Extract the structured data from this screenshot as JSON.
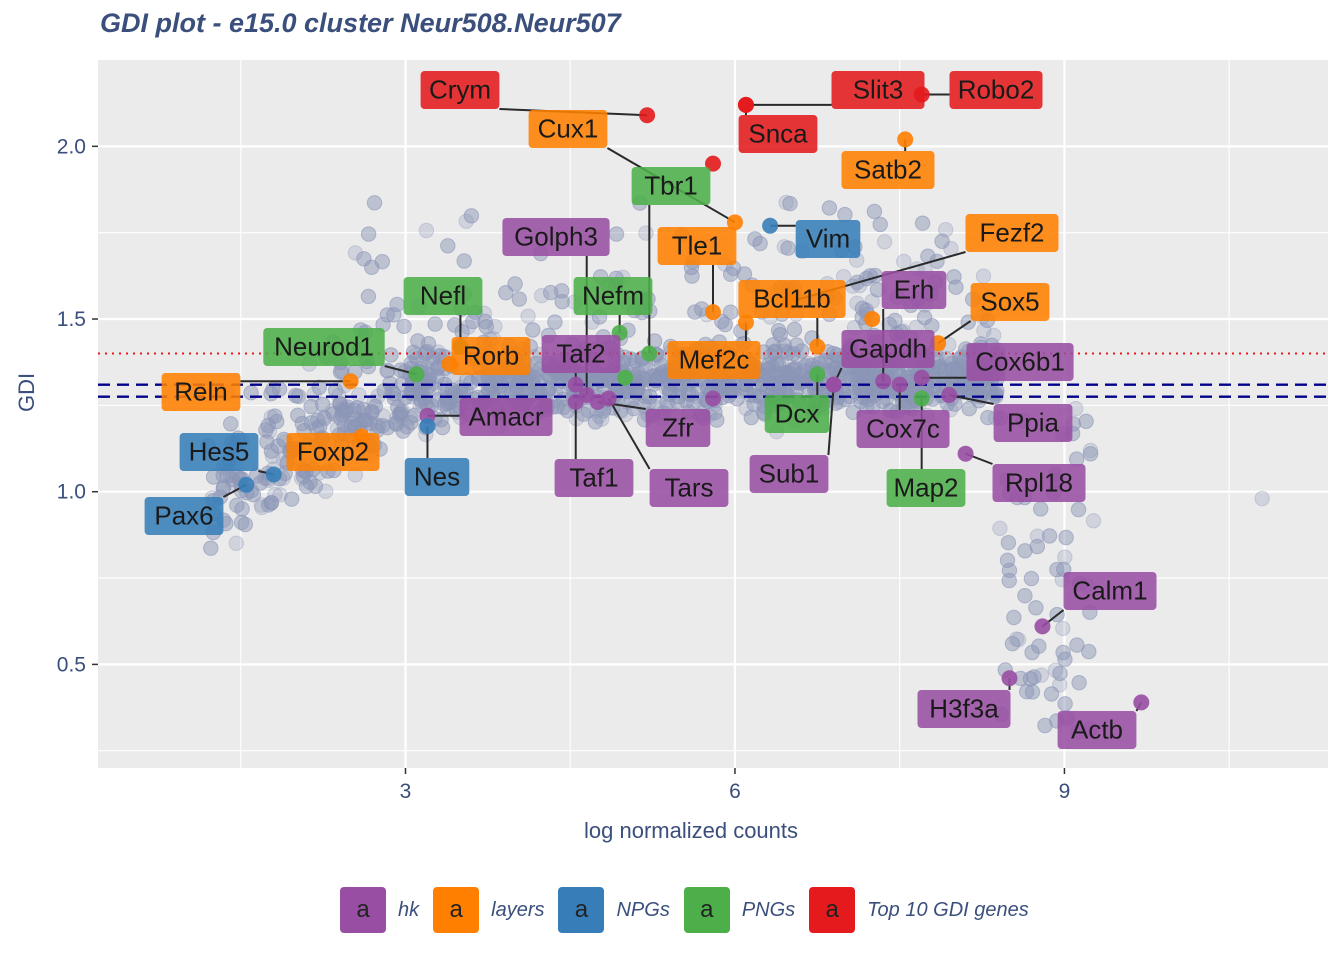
{
  "title": "GDI plot - e15.0 cluster Neur508.Neur507",
  "legend_key_glyph": "a",
  "chart_data": {
    "type": "scatter",
    "title": "GDI plot - e15.0 cluster Neur508.Neur507",
    "xlabel": "log normalized counts",
    "ylabel": "GDI",
    "xlim": [
      0.2,
      11.4
    ],
    "ylim": [
      0.2,
      2.25
    ],
    "x_ticks": [
      3,
      6,
      9
    ],
    "y_ticks": [
      0.5,
      1.0,
      1.5,
      2.0
    ],
    "x_tick_labels": [
      "3",
      "6",
      "9"
    ],
    "y_tick_labels": [
      "0.5",
      "1.0",
      "1.5",
      "2.0"
    ],
    "grid": true,
    "legend_position": "bottom",
    "reference_lines": [
      {
        "y": 1.4,
        "style": "dotted",
        "color": "#e41a1c"
      },
      {
        "y": 1.31,
        "style": "dashed",
        "color": "#00008b"
      },
      {
        "y": 1.275,
        "style": "dashed",
        "color": "#00008b"
      }
    ],
    "background_points": {
      "color": "#8c96b8",
      "note": "all other genes",
      "count": 2500
    },
    "categories": [
      {
        "name": "hk",
        "color": "#984ea3"
      },
      {
        "name": "layers",
        "color": "#ff7f00"
      },
      {
        "name": "NPGs",
        "color": "#377eb8"
      },
      {
        "name": "PNGs",
        "color": "#4daf4a"
      },
      {
        "name": "Top 10 GDI genes",
        "color": "#e41a1c"
      }
    ],
    "labeled_genes": [
      {
        "gene": "Crym",
        "x": 5.2,
        "y": 2.09,
        "group": "Top 10 GDI genes"
      },
      {
        "gene": "Snca",
        "x": 6.1,
        "y": 2.12,
        "group": "Top 10 GDI genes"
      },
      {
        "gene": "Slit3",
        "x": 6.1,
        "y": 2.12,
        "group": "Top 10 GDI genes"
      },
      {
        "gene": "Robo2",
        "x": 7.7,
        "y": 2.15,
        "group": "Top 10 GDI genes"
      },
      {
        "gene": "Cux1",
        "x": 6.0,
        "y": 1.78,
        "group": "layers"
      },
      {
        "gene": "Satb2",
        "x": 7.55,
        "y": 2.02,
        "group": "layers"
      },
      {
        "gene": "Tbr1",
        "x": 5.22,
        "y": 1.4,
        "group": "PNGs"
      },
      {
        "gene": "Vim",
        "x": 6.32,
        "y": 1.77,
        "group": "NPGs"
      },
      {
        "gene": "Golph3",
        "x": 4.65,
        "y": 1.28,
        "group": "hk"
      },
      {
        "gene": "Tle1",
        "x": 5.8,
        "y": 1.52,
        "group": "layers"
      },
      {
        "gene": "Fezf2",
        "x": 6.5,
        "y": 1.55,
        "group": "layers"
      },
      {
        "gene": "Nefl",
        "x": 3.5,
        "y": 1.42,
        "group": "PNGs"
      },
      {
        "gene": "Nefm",
        "x": 4.95,
        "y": 1.46,
        "group": "PNGs"
      },
      {
        "gene": "Erh",
        "x": 7.35,
        "y": 1.32,
        "group": "hk"
      },
      {
        "gene": "Bcl11b",
        "x": 6.75,
        "y": 1.42,
        "group": "layers"
      },
      {
        "gene": "Sox5",
        "x": 7.85,
        "y": 1.43,
        "group": "layers"
      },
      {
        "gene": "Neurod1",
        "x": 3.1,
        "y": 1.34,
        "group": "PNGs"
      },
      {
        "gene": "Rorb",
        "x": 3.4,
        "y": 1.37,
        "group": "layers"
      },
      {
        "gene": "Taf2",
        "x": 4.55,
        "y": 1.31,
        "group": "hk"
      },
      {
        "gene": "Mef2c",
        "x": 6.1,
        "y": 1.49,
        "group": "layers"
      },
      {
        "gene": "Gapdh",
        "x": 6.9,
        "y": 1.31,
        "group": "hk"
      },
      {
        "gene": "Cox6b1",
        "x": 7.7,
        "y": 1.33,
        "group": "hk"
      },
      {
        "gene": "Reln",
        "x": 2.5,
        "y": 1.32,
        "group": "layers"
      },
      {
        "gene": "Amacr",
        "x": 3.2,
        "y": 1.22,
        "group": "hk"
      },
      {
        "gene": "Zfr",
        "x": 4.75,
        "y": 1.26,
        "group": "hk"
      },
      {
        "gene": "Dcx",
        "x": 6.75,
        "y": 1.34,
        "group": "PNGs"
      },
      {
        "gene": "Cox7c",
        "x": 7.5,
        "y": 1.31,
        "group": "hk"
      },
      {
        "gene": "Ppia",
        "x": 7.95,
        "y": 1.28,
        "group": "hk"
      },
      {
        "gene": "Hes5",
        "x": 1.8,
        "y": 1.05,
        "group": "NPGs"
      },
      {
        "gene": "Foxp2",
        "x": 2.6,
        "y": 1.16,
        "group": "layers"
      },
      {
        "gene": "Nes",
        "x": 3.2,
        "y": 1.19,
        "group": "NPGs"
      },
      {
        "gene": "Taf1",
        "x": 4.55,
        "y": 1.26,
        "group": "hk"
      },
      {
        "gene": "Tars",
        "x": 4.85,
        "y": 1.27,
        "group": "hk"
      },
      {
        "gene": "Sub1",
        "x": 6.9,
        "y": 1.31,
        "group": "hk"
      },
      {
        "gene": "Map2",
        "x": 7.7,
        "y": 1.27,
        "group": "PNGs"
      },
      {
        "gene": "Rpl18",
        "x": 8.1,
        "y": 1.11,
        "group": "hk"
      },
      {
        "gene": "Pax6",
        "x": 1.55,
        "y": 1.02,
        "group": "NPGs"
      },
      {
        "gene": "Calm1",
        "x": 8.8,
        "y": 0.61,
        "group": "hk"
      },
      {
        "gene": "H3f3a",
        "x": 8.5,
        "y": 0.46,
        "group": "hk"
      },
      {
        "gene": "Actb",
        "x": 9.7,
        "y": 0.39,
        "group": "hk"
      }
    ],
    "extra_points": [
      {
        "x": 5.8,
        "y": 1.95,
        "group": "Top 10 GDI genes"
      },
      {
        "x": 5.0,
        "y": 1.33,
        "group": "PNGs"
      },
      {
        "x": 5.8,
        "y": 1.27,
        "group": "hk"
      },
      {
        "x": 7.25,
        "y": 1.5,
        "group": "layers"
      }
    ]
  }
}
